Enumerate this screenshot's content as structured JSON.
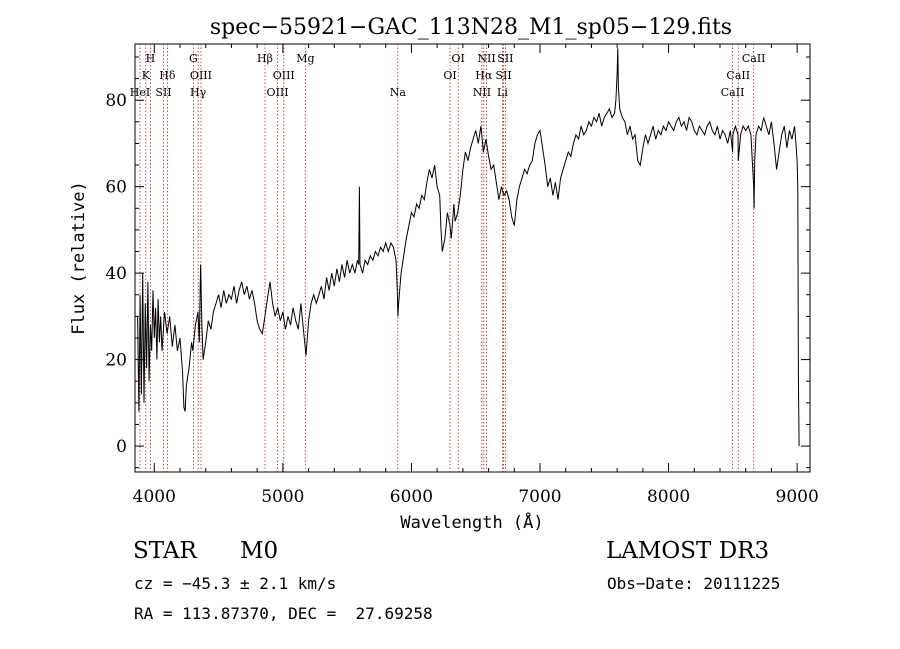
{
  "title": "spec−55921−GAC_113N28_M1_sp05−129.fits",
  "footer": {
    "class_label": "STAR",
    "subclass": "M0",
    "survey": "LAMOST DR3",
    "cz": "cz = −45.3 ± 2.1 km/s",
    "obs_date": "Obs−Date: 20111225",
    "coords": "RA = 113.87370, DEC =  27.69258"
  },
  "colors": {
    "spectrum": "#000000",
    "lines": "#b22222",
    "axes": "#000000"
  },
  "chart_data": {
    "type": "line",
    "title": "spec−55921−GAC_113N28_M1_sp05−129.fits",
    "xlabel": "Wavelength (Å)",
    "ylabel": "Flux (relative)",
    "xlim": [
      3850,
      9100
    ],
    "ylim": [
      -6,
      93
    ],
    "xticks": [
      4000,
      5000,
      6000,
      7000,
      8000,
      9000
    ],
    "yticks": [
      0,
      20,
      40,
      60,
      80
    ],
    "grid": false,
    "series": [
      {
        "points": [
          [
            3870,
            30
          ],
          [
            3880,
            8
          ],
          [
            3890,
            35
          ],
          [
            3900,
            12
          ],
          [
            3910,
            40
          ],
          [
            3920,
            10
          ],
          [
            3930,
            33
          ],
          [
            3940,
            18
          ],
          [
            3950,
            38
          ],
          [
            3960,
            15
          ],
          [
            3970,
            28
          ],
          [
            3980,
            22
          ],
          [
            3990,
            36
          ],
          [
            4000,
            25
          ],
          [
            4010,
            32
          ],
          [
            4020,
            20
          ],
          [
            4030,
            34
          ],
          [
            4040,
            24
          ],
          [
            4050,
            30
          ],
          [
            4060,
            22
          ],
          [
            4080,
            31
          ],
          [
            4100,
            26
          ],
          [
            4120,
            30
          ],
          [
            4140,
            23
          ],
          [
            4160,
            28
          ],
          [
            4180,
            22
          ],
          [
            4200,
            25
          ],
          [
            4220,
            17
          ],
          [
            4230,
            9
          ],
          [
            4240,
            8
          ],
          [
            4250,
            14
          ],
          [
            4270,
            18
          ],
          [
            4290,
            24
          ],
          [
            4300,
            22
          ],
          [
            4320,
            28
          ],
          [
            4340,
            31
          ],
          [
            4350,
            24
          ],
          [
            4360,
            42
          ],
          [
            4370,
            28
          ],
          [
            4380,
            20
          ],
          [
            4400,
            24
          ],
          [
            4420,
            29
          ],
          [
            4440,
            27
          ],
          [
            4460,
            31
          ],
          [
            4480,
            33
          ],
          [
            4500,
            35
          ],
          [
            4520,
            32
          ],
          [
            4540,
            36
          ],
          [
            4560,
            33
          ],
          [
            4580,
            35
          ],
          [
            4600,
            34
          ],
          [
            4620,
            37
          ],
          [
            4640,
            33
          ],
          [
            4660,
            36
          ],
          [
            4680,
            38
          ],
          [
            4700,
            35
          ],
          [
            4720,
            37
          ],
          [
            4740,
            34
          ],
          [
            4760,
            36
          ],
          [
            4780,
            33
          ],
          [
            4800,
            29
          ],
          [
            4820,
            27
          ],
          [
            4840,
            26
          ],
          [
            4860,
            30
          ],
          [
            4880,
            34
          ],
          [
            4900,
            38
          ],
          [
            4920,
            33
          ],
          [
            4940,
            30
          ],
          [
            4960,
            32
          ],
          [
            4980,
            29
          ],
          [
            5000,
            31
          ],
          [
            5020,
            27
          ],
          [
            5040,
            30
          ],
          [
            5060,
            28
          ],
          [
            5080,
            32
          ],
          [
            5100,
            29
          ],
          [
            5120,
            27
          ],
          [
            5140,
            33
          ],
          [
            5160,
            27
          ],
          [
            5170,
            24
          ],
          [
            5180,
            21
          ],
          [
            5200,
            29
          ],
          [
            5220,
            33
          ],
          [
            5240,
            35
          ],
          [
            5260,
            33
          ],
          [
            5280,
            35
          ],
          [
            5300,
            37
          ],
          [
            5320,
            34
          ],
          [
            5340,
            39
          ],
          [
            5360,
            36
          ],
          [
            5380,
            40
          ],
          [
            5400,
            37
          ],
          [
            5420,
            41
          ],
          [
            5440,
            38
          ],
          [
            5460,
            42
          ],
          [
            5480,
            39
          ],
          [
            5500,
            43
          ],
          [
            5520,
            40
          ],
          [
            5540,
            42
          ],
          [
            5560,
            40
          ],
          [
            5580,
            43
          ],
          [
            5590,
            42
          ],
          [
            5595,
            60
          ],
          [
            5600,
            42
          ],
          [
            5620,
            40
          ],
          [
            5640,
            43
          ],
          [
            5660,
            42
          ],
          [
            5680,
            44
          ],
          [
            5700,
            43
          ],
          [
            5720,
            45
          ],
          [
            5740,
            44
          ],
          [
            5760,
            46
          ],
          [
            5780,
            45
          ],
          [
            5800,
            47
          ],
          [
            5820,
            45
          ],
          [
            5840,
            47
          ],
          [
            5860,
            46
          ],
          [
            5880,
            43
          ],
          [
            5890,
            36
          ],
          [
            5895,
            30
          ],
          [
            5900,
            33
          ],
          [
            5920,
            40
          ],
          [
            5940,
            44
          ],
          [
            5960,
            48
          ],
          [
            5980,
            51
          ],
          [
            6000,
            54
          ],
          [
            6020,
            53
          ],
          [
            6040,
            56
          ],
          [
            6060,
            55
          ],
          [
            6080,
            58
          ],
          [
            6100,
            57
          ],
          [
            6120,
            61
          ],
          [
            6140,
            64
          ],
          [
            6160,
            62
          ],
          [
            6180,
            65
          ],
          [
            6200,
            60
          ],
          [
            6220,
            58
          ],
          [
            6230,
            50
          ],
          [
            6240,
            45
          ],
          [
            6260,
            48
          ],
          [
            6280,
            54
          ],
          [
            6300,
            51
          ],
          [
            6310,
            48
          ],
          [
            6320,
            52
          ],
          [
            6330,
            56
          ],
          [
            6340,
            52
          ],
          [
            6360,
            54
          ],
          [
            6380,
            58
          ],
          [
            6400,
            64
          ],
          [
            6420,
            68
          ],
          [
            6440,
            66
          ],
          [
            6460,
            69
          ],
          [
            6480,
            71
          ],
          [
            6500,
            73
          ],
          [
            6520,
            70
          ],
          [
            6540,
            74
          ],
          [
            6560,
            68
          ],
          [
            6580,
            71
          ],
          [
            6600,
            67
          ],
          [
            6620,
            64
          ],
          [
            6640,
            65
          ],
          [
            6660,
            61
          ],
          [
            6680,
            57
          ],
          [
            6700,
            60
          ],
          [
            6720,
            58
          ],
          [
            6740,
            59
          ],
          [
            6760,
            57
          ],
          [
            6780,
            53
          ],
          [
            6800,
            51
          ],
          [
            6820,
            57
          ],
          [
            6840,
            60
          ],
          [
            6860,
            62
          ],
          [
            6880,
            64
          ],
          [
            6900,
            63
          ],
          [
            6920,
            65
          ],
          [
            6940,
            66
          ],
          [
            6960,
            70
          ],
          [
            6980,
            72
          ],
          [
            7000,
            73
          ],
          [
            7020,
            69
          ],
          [
            7040,
            65
          ],
          [
            7060,
            60
          ],
          [
            7080,
            62
          ],
          [
            7100,
            58
          ],
          [
            7120,
            61
          ],
          [
            7140,
            57
          ],
          [
            7160,
            62
          ],
          [
            7180,
            64
          ],
          [
            7200,
            66
          ],
          [
            7220,
            68
          ],
          [
            7240,
            67
          ],
          [
            7260,
            70
          ],
          [
            7280,
            72
          ],
          [
            7300,
            71
          ],
          [
            7320,
            74
          ],
          [
            7340,
            72
          ],
          [
            7360,
            73
          ],
          [
            7380,
            75
          ],
          [
            7400,
            74
          ],
          [
            7420,
            76
          ],
          [
            7440,
            75
          ],
          [
            7460,
            77
          ],
          [
            7480,
            74
          ],
          [
            7500,
            76
          ],
          [
            7520,
            77
          ],
          [
            7540,
            78
          ],
          [
            7560,
            76
          ],
          [
            7580,
            77
          ],
          [
            7590,
            80
          ],
          [
            7600,
            86
          ],
          [
            7605,
            92
          ],
          [
            7610,
            83
          ],
          [
            7620,
            78
          ],
          [
            7640,
            76
          ],
          [
            7660,
            75
          ],
          [
            7680,
            72
          ],
          [
            7700,
            74
          ],
          [
            7720,
            71
          ],
          [
            7740,
            72
          ],
          [
            7760,
            66
          ],
          [
            7780,
            65
          ],
          [
            7800,
            69
          ],
          [
            7820,
            72
          ],
          [
            7840,
            70
          ],
          [
            7860,
            72
          ],
          [
            7880,
            74
          ],
          [
            7900,
            71
          ],
          [
            7920,
            73
          ],
          [
            7940,
            72
          ],
          [
            7960,
            74
          ],
          [
            7980,
            73
          ],
          [
            8000,
            75
          ],
          [
            8020,
            74
          ],
          [
            8040,
            73
          ],
          [
            8060,
            75
          ],
          [
            8080,
            76
          ],
          [
            8100,
            74
          ],
          [
            8120,
            75
          ],
          [
            8140,
            73
          ],
          [
            8160,
            76
          ],
          [
            8180,
            75
          ],
          [
            8200,
            73
          ],
          [
            8220,
            72
          ],
          [
            8240,
            74
          ],
          [
            8260,
            73
          ],
          [
            8280,
            72
          ],
          [
            8300,
            74
          ],
          [
            8320,
            75
          ],
          [
            8340,
            73
          ],
          [
            8360,
            72
          ],
          [
            8380,
            74
          ],
          [
            8400,
            71
          ],
          [
            8420,
            73
          ],
          [
            8440,
            72
          ],
          [
            8460,
            70
          ],
          [
            8480,
            73
          ],
          [
            8498,
            68
          ],
          [
            8500,
            72
          ],
          [
            8520,
            74
          ],
          [
            8540,
            72
          ],
          [
            8542,
            66
          ],
          [
            8560,
            72
          ],
          [
            8580,
            74
          ],
          [
            8600,
            73
          ],
          [
            8620,
            74
          ],
          [
            8640,
            72
          ],
          [
            8662,
            60
          ],
          [
            8665,
            55
          ],
          [
            8670,
            66
          ],
          [
            8680,
            72
          ],
          [
            8700,
            74
          ],
          [
            8720,
            73
          ],
          [
            8740,
            76
          ],
          [
            8760,
            74
          ],
          [
            8780,
            72
          ],
          [
            8800,
            75
          ],
          [
            8820,
            70
          ],
          [
            8840,
            64
          ],
          [
            8860,
            68
          ],
          [
            8880,
            72
          ],
          [
            8900,
            74
          ],
          [
            8920,
            69
          ],
          [
            8940,
            73
          ],
          [
            8960,
            71
          ],
          [
            8980,
            74
          ],
          [
            8990,
            70
          ],
          [
            9000,
            66
          ],
          [
            9005,
            60
          ],
          [
            9010,
            16
          ],
          [
            9015,
            0
          ]
        ]
      }
    ],
    "line_ids": [
      {
        "wave": 3889,
        "label": "HeI",
        "row": 2
      },
      {
        "wave": 3934,
        "label": "K",
        "row": 1
      },
      {
        "wave": 3970,
        "label": "H",
        "row": 0
      },
      {
        "wave": 4072,
        "label": "SII",
        "row": 2
      },
      {
        "wave": 4102,
        "label": "Hδ",
        "row": 1
      },
      {
        "wave": 4304,
        "label": "G",
        "row": 0
      },
      {
        "wave": 4341,
        "label": "Hγ",
        "row": 2
      },
      {
        "wave": 4363,
        "label": "OIII",
        "row": 1
      },
      {
        "wave": 4861,
        "label": "Hβ",
        "row": 0
      },
      {
        "wave": 4959,
        "label": "OIII",
        "row": 2
      },
      {
        "wave": 5007,
        "label": "OIII",
        "row": 1
      },
      {
        "wave": 5175,
        "label": "Mg",
        "row": 0
      },
      {
        "wave": 5894,
        "label": "Na",
        "row": 2
      },
      {
        "wave": 6300,
        "label": "OI",
        "row": 1
      },
      {
        "wave": 6364,
        "label": "OI",
        "row": 0
      },
      {
        "wave": 6548,
        "label": "NII",
        "row": 2
      },
      {
        "wave": 6563,
        "label": "Hα",
        "row": 1
      },
      {
        "wave": 6584,
        "label": "NII",
        "row": 0
      },
      {
        "wave": 6708,
        "label": "Li",
        "row": 2
      },
      {
        "wave": 6717,
        "label": "SII",
        "row": 1
      },
      {
        "wave": 6731,
        "label": "SII",
        "row": 0
      },
      {
        "wave": 8498,
        "label": "CaII",
        "row": 2
      },
      {
        "wave": 8542,
        "label": "CaII",
        "row": 1
      },
      {
        "wave": 8662,
        "label": "CaII",
        "row": 0
      }
    ]
  }
}
